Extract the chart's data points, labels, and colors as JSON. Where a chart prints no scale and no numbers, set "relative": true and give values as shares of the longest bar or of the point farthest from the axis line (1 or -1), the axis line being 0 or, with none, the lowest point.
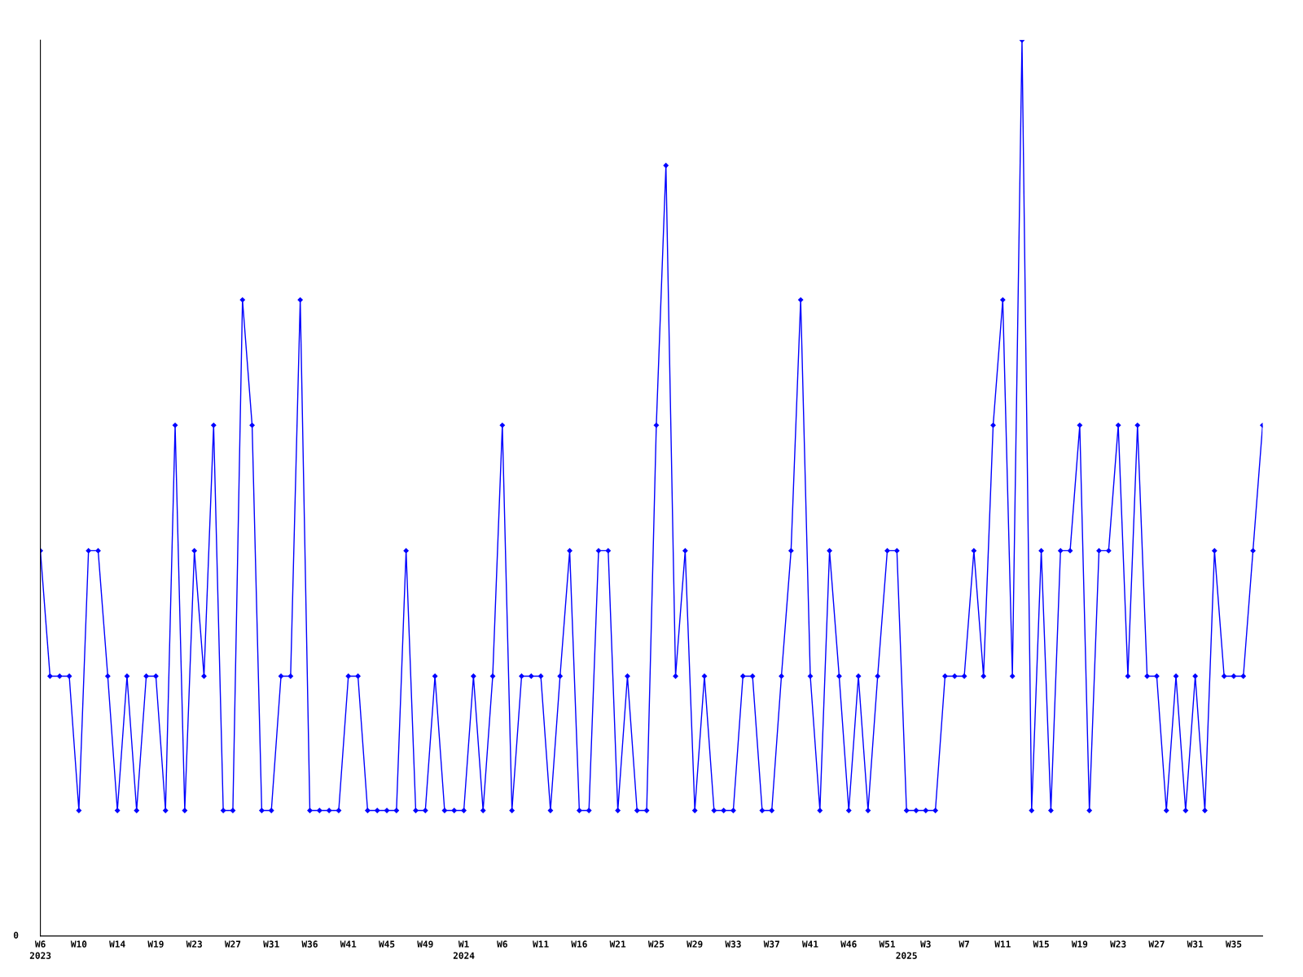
{
  "chart_data": {
    "type": "line",
    "relative": true,
    "color": "#0000ff",
    "marker": "diamond",
    "line_style": "solid",
    "grid": false,
    "legend": false,
    "categories": [
      "W6\n2023",
      null,
      null,
      null,
      "W10",
      null,
      null,
      null,
      "W14",
      null,
      null,
      null,
      "W19",
      null,
      null,
      null,
      "W23",
      null,
      null,
      null,
      "W27",
      null,
      null,
      null,
      "W31",
      null,
      null,
      null,
      "W36",
      null,
      null,
      null,
      "W41",
      null,
      null,
      null,
      "W45",
      null,
      null,
      null,
      "W49",
      null,
      null,
      null,
      "W1\n2024",
      null,
      null,
      null,
      "W6",
      null,
      null,
      null,
      "W11",
      null,
      null,
      null,
      "W16",
      null,
      null,
      null,
      "W21",
      null,
      null,
      null,
      "W25",
      null,
      null,
      null,
      "W29",
      null,
      null,
      null,
      "W33",
      null,
      null,
      null,
      "W37",
      null,
      null,
      null,
      "W41",
      null,
      null,
      null,
      "W46",
      null,
      null,
      null,
      "W51",
      null,
      "\n2025",
      null,
      "W3",
      null,
      null,
      null,
      "W7",
      null,
      null,
      null,
      "W11",
      null,
      null,
      null,
      "W15",
      null,
      null,
      null,
      "W19",
      null,
      null,
      null,
      "W23",
      null,
      null,
      null,
      "W27",
      null,
      null,
      null,
      "W31",
      null,
      null,
      null,
      "W35",
      null,
      null,
      null
    ],
    "values": [
      0.43,
      0.29,
      0.29,
      0.29,
      0.14,
      0.43,
      0.43,
      0.29,
      0.14,
      0.29,
      0.14,
      0.29,
      0.29,
      0.14,
      0.57,
      0.14,
      0.43,
      0.29,
      0.57,
      0.14,
      0.14,
      0.71,
      0.57,
      0.14,
      0.14,
      0.29,
      0.29,
      0.71,
      0.14,
      0.14,
      0.14,
      0.14,
      0.29,
      0.29,
      0.14,
      0.14,
      0.14,
      0.14,
      0.43,
      0.14,
      0.14,
      0.29,
      0.14,
      0.14,
      0.14,
      0.29,
      0.14,
      0.29,
      0.57,
      0.14,
      0.29,
      0.29,
      0.29,
      0.14,
      0.29,
      0.43,
      0.14,
      0.14,
      0.43,
      0.43,
      0.14,
      0.29,
      0.14,
      0.14,
      0.57,
      0.86,
      0.29,
      0.43,
      0.14,
      0.29,
      0.14,
      0.14,
      0.14,
      0.29,
      0.29,
      0.14,
      0.14,
      0.29,
      0.43,
      0.71,
      0.29,
      0.14,
      0.43,
      0.29,
      0.14,
      0.29,
      0.14,
      0.29,
      0.43,
      0.43,
      0.14,
      0.14,
      0.14,
      0.14,
      0.29,
      0.29,
      0.29,
      0.43,
      0.29,
      0.57,
      0.71,
      0.29,
      1,
      0.14,
      0.43,
      0.14,
      0.43,
      0.43,
      0.57,
      0.14,
      0.43,
      0.43,
      0.57,
      0.29,
      0.57,
      0.29,
      0.29,
      0.14,
      0.29,
      0.14,
      0.29,
      0.14,
      0.43,
      0.29,
      0.29,
      0.29,
      0.43,
      0.57
    ],
    "annotations": [
      "0"
    ]
  }
}
